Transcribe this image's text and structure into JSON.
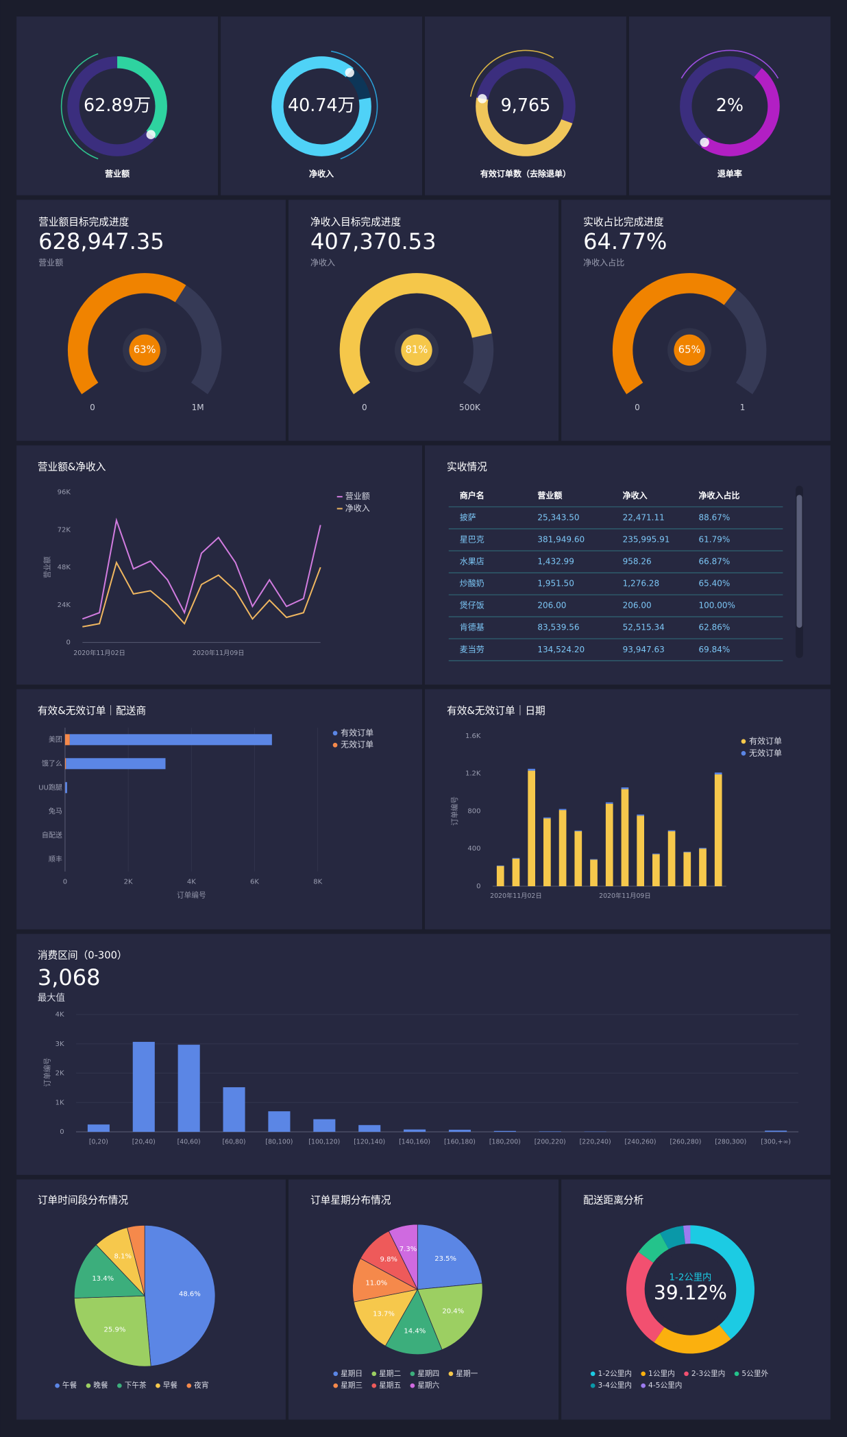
{
  "kpis": [
    {
      "value": "62.89万",
      "label": "营业额"
    },
    {
      "value": "40.74万",
      "label": "净收入"
    },
    {
      "value": "9,765",
      "label": "有效订单数（去除退单）"
    },
    {
      "value": "2%",
      "label": "退单率"
    }
  ],
  "gauges": [
    {
      "title": "营业额目标完成进度",
      "value": "628,947.35",
      "sublabel": "营业额",
      "percent": 63,
      "percent_label": "63%",
      "min": "0",
      "max": "1M",
      "color": "#f08300"
    },
    {
      "title": "净收入目标完成进度",
      "value": "407,370.53",
      "sublabel": "净收入",
      "percent": 81,
      "percent_label": "81%",
      "min": "0",
      "max": "500K",
      "color": "#f5c74a"
    },
    {
      "title": "实收占比完成进度",
      "value": "64.77%",
      "sublabel": "净收入占比",
      "percent": 65,
      "percent_label": "65%",
      "min": "0",
      "max": "1",
      "color": "#f08300"
    }
  ],
  "table": {
    "title": "实收情况",
    "header": [
      "商户名",
      "营业额",
      "净收入",
      "净收入占比"
    ],
    "rows": [
      [
        "披萨",
        "25,343.50",
        "22,471.11",
        "88.67%"
      ],
      [
        "星巴克",
        "381,949.60",
        "235,995.91",
        "61.79%"
      ],
      [
        "水果店",
        "1,432.99",
        "958.26",
        "66.87%"
      ],
      [
        "炒酸奶",
        "1,951.50",
        "1,276.28",
        "65.40%"
      ],
      [
        "煲仔饭",
        "206.00",
        "206.00",
        "100.00%"
      ],
      [
        "肯德基",
        "83,539.56",
        "52,515.34",
        "62.86%"
      ],
      [
        "麦当劳",
        "134,524.20",
        "93,947.63",
        "69.84%"
      ]
    ]
  },
  "chart_data": [
    {
      "type": "line",
      "title": "营业额&净收入",
      "categories": [
        null,
        "2020年11月02日",
        null,
        null,
        null,
        null,
        null,
        null,
        "2020年11月09日",
        null,
        null,
        null,
        null,
        null,
        null
      ],
      "series": [
        {
          "name": "营业额",
          "color": "#d27ce0",
          "values": [
            15000,
            19000,
            78000,
            47000,
            52000,
            40000,
            19000,
            57000,
            67000,
            51000,
            23000,
            40000,
            23000,
            28000,
            75000
          ]
        },
        {
          "name": "净收入",
          "color": "#f0b760",
          "values": [
            10000,
            12000,
            51000,
            31000,
            33000,
            24000,
            12000,
            37000,
            43000,
            33000,
            15000,
            27000,
            16000,
            19000,
            48000
          ]
        }
      ],
      "ylabel": "营业额",
      "ylim": [
        0,
        96000
      ],
      "yticks": [
        0,
        {
          "value": 24000,
          "label": "24K"
        },
        {
          "value": 48000,
          "label": "48K"
        },
        {
          "value": 72000,
          "label": "72K"
        },
        {
          "value": 96000,
          "label": "96K"
        }
      ],
      "grid": false
    },
    {
      "type": "hbar",
      "title": "有效&无效订单｜配送商",
      "categories": [
        "美团",
        "饿了么",
        "UU跑腿",
        "兔马",
        "自配送",
        "顺丰"
      ],
      "series": [
        {
          "name": "有效订单",
          "color": "#5b86e5",
          "values": [
            6400,
            3150,
            60,
            0,
            0,
            0
          ]
        },
        {
          "name": "无效订单",
          "color": "#f5894b",
          "values": [
            150,
            30,
            5,
            0,
            0,
            0
          ]
        }
      ],
      "xlabel": "订单编号",
      "xlim": [
        0,
        8000
      ],
      "xticks": [
        0,
        {
          "value": 2000,
          "label": "2K"
        },
        {
          "value": 4000,
          "label": "4K"
        },
        {
          "value": 6000,
          "label": "6K"
        },
        {
          "value": 8000,
          "label": "8K"
        }
      ],
      "grid": true
    },
    {
      "type": "bar",
      "title": "有效&无效订单｜日期",
      "categories": [
        null,
        "2020年11月02日",
        null,
        null,
        null,
        null,
        null,
        null,
        "2020年11月09日",
        null,
        null,
        null,
        null,
        null,
        null
      ],
      "series": [
        {
          "name": "有效订单",
          "color": "#f6c84c",
          "values": [
            215,
            293,
            1230,
            722,
            810,
            585,
            283,
            878,
            1034,
            751,
            341,
            585,
            361,
            400,
            1190
          ]
        },
        {
          "name": "无效订单",
          "color": "#5b86e5",
          "values": [
            5,
            8,
            20,
            10,
            12,
            8,
            5,
            15,
            18,
            12,
            6,
            10,
            6,
            8,
            20
          ]
        }
      ],
      "ylabel": "订单编号",
      "ylim": [
        0,
        1600
      ],
      "yticks": [
        0,
        400,
        800,
        {
          "value": 1200,
          "label": "1.2K"
        },
        {
          "value": 1600,
          "label": "1.6K"
        }
      ],
      "grid": false
    },
    {
      "type": "bar",
      "title": "消费区间（0-300）",
      "kpi": "3,068",
      "kpi_label": "最大值",
      "categories": [
        "[0,20)",
        "[20,40)",
        "[40,60)",
        "[60,80)",
        "[80,100)",
        "[100,120)",
        "[120,140)",
        "[140,160)",
        "[160,180)",
        "[180,200)",
        "[200,220)",
        "[220,240)",
        "[240,260)",
        "[260,280)",
        "[280,300)",
        "[300,+∞)"
      ],
      "values": [
        250,
        3068,
        2970,
        1520,
        700,
        430,
        230,
        80,
        70,
        30,
        15,
        10,
        5,
        0,
        0,
        40
      ],
      "color": "#5b86e5",
      "ylabel": "订单编号",
      "ylim": [
        0,
        4000
      ],
      "yticks": [
        0,
        {
          "value": 1000,
          "label": "1K"
        },
        {
          "value": 2000,
          "label": "2K"
        },
        {
          "value": 3000,
          "label": "3K"
        },
        {
          "value": 4000,
          "label": "4K"
        }
      ],
      "grid": true
    },
    {
      "type": "pie",
      "title": "订单时间段分布情况",
      "categories": [
        "午餐",
        "晚餐",
        "下午茶",
        "早餐",
        "夜宵"
      ],
      "values": [
        48.6,
        25.9,
        13.4,
        8.1,
        4.0
      ],
      "value_labels": [
        "48.6%",
        "25.9%",
        "13.4%",
        "8.1%",
        null
      ],
      "colors": [
        "#5b86e5",
        "#9ccf62",
        "#3cae7c",
        "#f6c84c",
        "#f5894b"
      ]
    },
    {
      "type": "pie",
      "title": "订单星期分布情况",
      "categories": [
        "星期日",
        "星期二",
        "星期四",
        "星期一",
        "星期三",
        "星期五",
        "星期六"
      ],
      "values": [
        23.5,
        20.4,
        14.4,
        13.7,
        11.0,
        9.8,
        7.3
      ],
      "value_labels": [
        "23.5%",
        "20.4%",
        "14.4%",
        "13.7%",
        "11.0%",
        "9.8%",
        "7.3%"
      ],
      "colors": [
        "#5b86e5",
        "#9ccf62",
        "#3cae7c",
        "#f6c84c",
        "#f5894b",
        "#ee5a5a",
        "#cf6ae0"
      ]
    },
    {
      "type": "donut",
      "title": "配送距离分析",
      "categories": [
        "1-2公里内",
        "1公里内",
        "2-3公里内",
        "5公里外",
        "3-4公里内",
        "4-5公里内"
      ],
      "values": [
        39.12,
        20.5,
        25.3,
        7.2,
        6.1,
        1.78
      ],
      "value_labels": [
        "39.12%",
        null,
        null,
        null,
        null,
        null
      ],
      "colors": [
        "#1ccbe3",
        "#fbb00e",
        "#f25070",
        "#24c38b",
        "#0a98a8",
        "#9c7bf0"
      ]
    }
  ]
}
